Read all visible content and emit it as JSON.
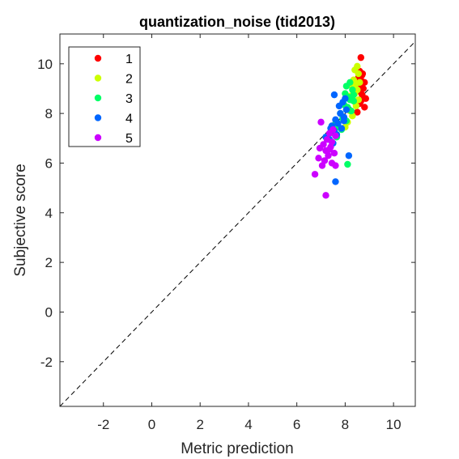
{
  "chart_data": {
    "type": "scatter",
    "title": "quantization_noise (tid2013)",
    "xlabel": "Metric prediction",
    "ylabel": "Subjective score",
    "xlim": [
      -3.8,
      10.9
    ],
    "ylim": [
      -3.8,
      11.2
    ],
    "xticks": [
      -2,
      0,
      2,
      4,
      6,
      8,
      10
    ],
    "yticks": [
      -2,
      0,
      2,
      4,
      6,
      8,
      10
    ],
    "reference_line": {
      "style": "dashed",
      "color": "#000000",
      "description": "y = x"
    },
    "legend": {
      "position": "top-left"
    },
    "series": [
      {
        "name": "1",
        "color": "#ff0000",
        "points": [
          [
            8.65,
            10.25
          ],
          [
            8.6,
            9.7
          ],
          [
            8.72,
            9.6
          ],
          [
            8.55,
            9.45
          ],
          [
            8.65,
            9.35
          ],
          [
            8.8,
            9.25
          ],
          [
            8.6,
            9.1
          ],
          [
            8.75,
            9.0
          ],
          [
            8.55,
            8.9
          ],
          [
            8.7,
            8.75
          ],
          [
            8.85,
            8.6
          ],
          [
            8.65,
            8.5
          ],
          [
            8.8,
            8.25
          ],
          [
            8.5,
            8.05
          ],
          [
            8.6,
            8.4
          ],
          [
            8.7,
            9.55
          ]
        ]
      },
      {
        "name": "2",
        "color": "#ccff00",
        "points": [
          [
            8.5,
            9.9
          ],
          [
            8.4,
            9.75
          ],
          [
            8.55,
            9.6
          ],
          [
            8.35,
            9.35
          ],
          [
            8.45,
            9.2
          ],
          [
            8.3,
            9.05
          ],
          [
            8.5,
            8.95
          ],
          [
            8.4,
            8.8
          ],
          [
            8.2,
            8.7
          ],
          [
            8.35,
            8.5
          ],
          [
            8.45,
            8.3
          ],
          [
            8.2,
            8.1
          ],
          [
            8.3,
            7.9
          ],
          [
            8.1,
            7.65
          ],
          [
            8.0,
            7.45
          ],
          [
            8.55,
            8.55
          ],
          [
            8.6,
            9.25
          ]
        ]
      },
      {
        "name": "3",
        "color": "#00ff66",
        "points": [
          [
            8.2,
            9.25
          ],
          [
            8.05,
            9.1
          ],
          [
            8.3,
            8.95
          ],
          [
            8.0,
            8.8
          ],
          [
            8.15,
            8.65
          ],
          [
            8.35,
            8.5
          ],
          [
            7.95,
            8.35
          ],
          [
            8.1,
            8.25
          ],
          [
            8.25,
            8.1
          ],
          [
            7.8,
            8.0
          ],
          [
            7.9,
            7.8
          ],
          [
            8.05,
            7.7
          ],
          [
            7.6,
            7.6
          ],
          [
            7.7,
            7.45
          ],
          [
            7.85,
            7.35
          ],
          [
            7.5,
            7.2
          ],
          [
            7.65,
            7.05
          ],
          [
            8.1,
            5.95
          ],
          [
            8.2,
            8.55
          ],
          [
            8.35,
            8.75
          ]
        ]
      },
      {
        "name": "4",
        "color": "#0066ff",
        "points": [
          [
            7.55,
            8.75
          ],
          [
            8.0,
            8.6
          ],
          [
            7.9,
            8.45
          ],
          [
            7.75,
            8.3
          ],
          [
            8.05,
            8.15
          ],
          [
            7.8,
            8.0
          ],
          [
            7.95,
            7.85
          ],
          [
            7.6,
            7.75
          ],
          [
            7.7,
            7.6
          ],
          [
            7.45,
            7.5
          ],
          [
            7.85,
            7.4
          ],
          [
            7.55,
            7.3
          ],
          [
            7.65,
            7.15
          ],
          [
            7.2,
            7.05
          ],
          [
            7.35,
            6.95
          ],
          [
            7.5,
            6.8
          ],
          [
            8.15,
            6.3
          ],
          [
            7.6,
            5.25
          ],
          [
            7.95,
            7.7
          ],
          [
            7.4,
            7.4
          ]
        ]
      },
      {
        "name": "5",
        "color": "#cc00ff",
        "points": [
          [
            7.0,
            7.65
          ],
          [
            7.5,
            7.35
          ],
          [
            7.35,
            7.2
          ],
          [
            7.6,
            7.1
          ],
          [
            7.25,
            6.95
          ],
          [
            7.45,
            6.85
          ],
          [
            7.1,
            6.75
          ],
          [
            7.4,
            6.65
          ],
          [
            6.95,
            6.6
          ],
          [
            7.2,
            6.5
          ],
          [
            7.55,
            6.4
          ],
          [
            7.3,
            6.3
          ],
          [
            6.9,
            6.2
          ],
          [
            7.15,
            6.1
          ],
          [
            7.45,
            6.0
          ],
          [
            7.05,
            5.9
          ],
          [
            6.75,
            5.55
          ],
          [
            7.2,
            4.7
          ],
          [
            7.6,
            5.9
          ],
          [
            7.35,
            6.55
          ]
        ]
      }
    ]
  }
}
